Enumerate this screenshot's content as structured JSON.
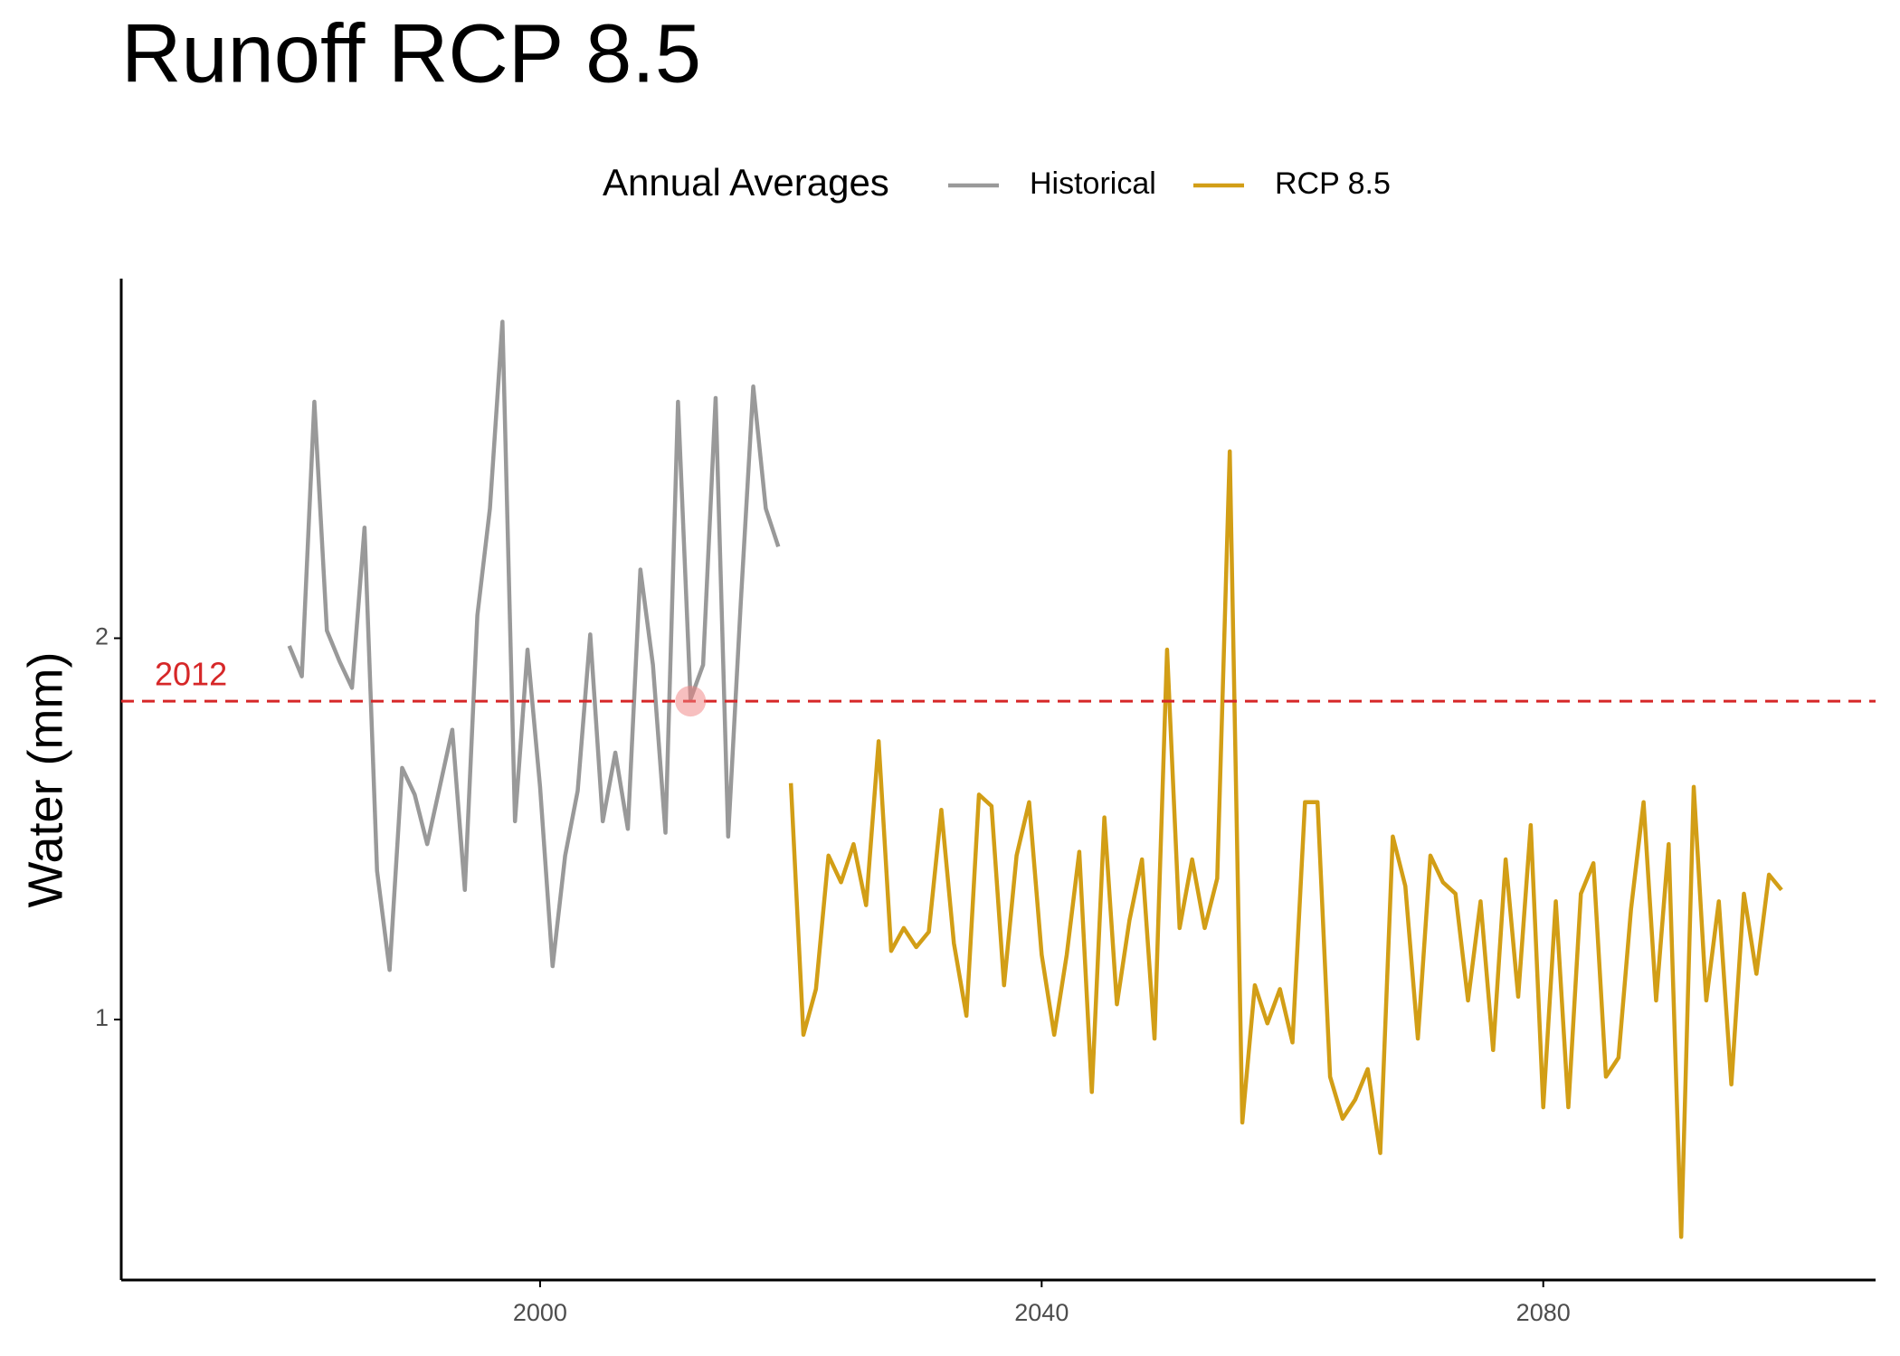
{
  "chart_data": {
    "type": "line",
    "title": "Runoff RCP 8.5",
    "y_label": "Water (mm)",
    "legend_title": "Annual Averages",
    "legend": "top",
    "xlim": [
      1966.6,
      2106.5
    ],
    "ylim": [
      0.317,
      2.943
    ],
    "xticks": [
      2000,
      2040,
      2080
    ],
    "yticks": [
      1,
      2
    ],
    "series": [
      {
        "name": "Historical",
        "color": "#999999",
        "x": [
          1980,
          1981,
          1982,
          1983,
          1984,
          1985,
          1986,
          1987,
          1988,
          1989,
          1990,
          1991,
          1992,
          1993,
          1994,
          1995,
          1996,
          1997,
          1998,
          1999,
          2000,
          2001,
          2002,
          2003,
          2004,
          2005,
          2006,
          2007,
          2008,
          2009,
          2010,
          2011,
          2012,
          2013,
          2014,
          2015,
          2016,
          2017,
          2018,
          2019
        ],
        "values": [
          1.98,
          1.9,
          2.62,
          2.02,
          1.94,
          1.87,
          2.29,
          1.39,
          1.13,
          1.66,
          1.59,
          1.46,
          1.61,
          1.76,
          1.34,
          2.06,
          2.34,
          2.83,
          1.52,
          1.97,
          1.61,
          1.14,
          1.43,
          1.6,
          2.01,
          1.52,
          1.7,
          1.5,
          2.18,
          1.93,
          1.49,
          2.62,
          1.84,
          1.93,
          2.63,
          1.48,
          2.09,
          2.66,
          2.34,
          2.24
        ]
      },
      {
        "name": "RCP 8.5",
        "color": "#d29e16",
        "x": [
          2020,
          2021,
          2022,
          2023,
          2024,
          2025,
          2026,
          2027,
          2028,
          2029,
          2030,
          2031,
          2032,
          2033,
          2034,
          2035,
          2036,
          2037,
          2038,
          2039,
          2040,
          2041,
          2042,
          2043,
          2044,
          2045,
          2046,
          2047,
          2048,
          2049,
          2050,
          2051,
          2052,
          2053,
          2054,
          2055,
          2056,
          2057,
          2058,
          2059,
          2060,
          2061,
          2062,
          2063,
          2064,
          2065,
          2066,
          2067,
          2068,
          2069,
          2070,
          2071,
          2072,
          2073,
          2074,
          2075,
          2076,
          2077,
          2078,
          2079,
          2080,
          2081,
          2082,
          2083,
          2084,
          2085,
          2086,
          2087,
          2088,
          2089,
          2090,
          2091,
          2092,
          2093,
          2094,
          2095,
          2096,
          2097,
          2098,
          2099
        ],
        "values": [
          1.62,
          0.96,
          1.08,
          1.43,
          1.36,
          1.46,
          1.3,
          1.73,
          1.18,
          1.24,
          1.19,
          1.23,
          1.55,
          1.2,
          1.01,
          1.59,
          1.56,
          1.09,
          1.43,
          1.57,
          1.17,
          0.96,
          1.17,
          1.44,
          0.81,
          1.53,
          1.04,
          1.26,
          1.42,
          0.95,
          1.97,
          1.24,
          1.42,
          1.24,
          1.37,
          2.49,
          0.73,
          1.09,
          0.99,
          1.08,
          0.94,
          1.57,
          1.57,
          0.85,
          0.74,
          0.79,
          0.87,
          0.65,
          1.48,
          1.35,
          0.95,
          1.43,
          1.36,
          1.33,
          1.05,
          1.31,
          0.92,
          1.42,
          1.06,
          1.51,
          0.77,
          1.31,
          0.77,
          1.33,
          1.41,
          0.85,
          0.9,
          1.29,
          1.57,
          1.05,
          1.46,
          0.43,
          1.61,
          1.05,
          1.31,
          0.83,
          1.33,
          1.12,
          1.38,
          1.34
        ]
      }
    ],
    "reference_line": {
      "y": 1.835,
      "label": "2012",
      "color": "#d62728"
    },
    "highlight_point": {
      "x": 2012,
      "y": 1.835,
      "color": "#f08080"
    }
  }
}
